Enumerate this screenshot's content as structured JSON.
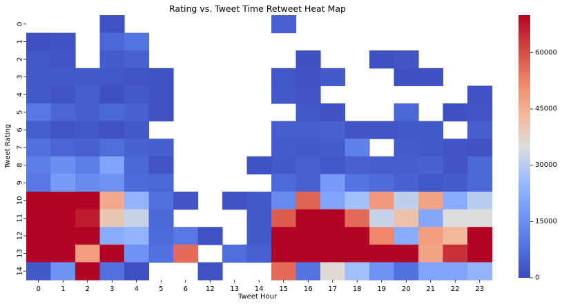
{
  "chart_data": {
    "type": "heatmap",
    "title": "Rating vs. Tweet Time Retweet Heat Map",
    "xlabel": "Tweet Hour",
    "ylabel": "Tweet Rating",
    "x_categories": [
      "0",
      "1",
      "2",
      "3",
      "4",
      "5",
      "6",
      "12",
      "13",
      "14",
      "15",
      "16",
      "17",
      "18",
      "19",
      "20",
      "21",
      "22",
      "23"
    ],
    "y_categories": [
      "0",
      "1",
      "2",
      "3",
      "4",
      "5",
      "6",
      "7",
      "8",
      "9",
      "10",
      "11",
      "12",
      "13",
      "14"
    ],
    "values": [
      [
        null,
        null,
        null,
        1500,
        null,
        null,
        null,
        null,
        null,
        null,
        4500,
        null,
        null,
        null,
        null,
        null,
        null,
        null,
        null
      ],
      [
        1000,
        1500,
        null,
        6000,
        9000,
        null,
        null,
        null,
        null,
        null,
        null,
        null,
        null,
        null,
        null,
        null,
        null,
        null,
        null
      ],
      [
        2500,
        2000,
        null,
        3500,
        4500,
        null,
        null,
        null,
        null,
        null,
        null,
        1000,
        null,
        null,
        1000,
        2000,
        null,
        null,
        null
      ],
      [
        2500,
        3000,
        3000,
        2500,
        2000,
        1500,
        null,
        null,
        null,
        null,
        2500,
        1500,
        3000,
        null,
        null,
        1000,
        1000,
        null,
        null
      ],
      [
        3000,
        2000,
        4000,
        1000,
        3000,
        1500,
        null,
        null,
        null,
        null,
        3000,
        2000,
        null,
        null,
        null,
        null,
        null,
        null,
        1500
      ],
      [
        10000,
        5500,
        4000,
        6000,
        5000,
        1500,
        null,
        null,
        null,
        null,
        null,
        2500,
        1500,
        null,
        null,
        6000,
        null,
        1000,
        2000
      ],
      [
        4000,
        2000,
        2500,
        1500,
        3000,
        null,
        null,
        null,
        null,
        null,
        4000,
        4000,
        4500,
        2000,
        2000,
        2500,
        2500,
        null,
        4000
      ],
      [
        8000,
        5500,
        4500,
        7500,
        5000,
        4000,
        null,
        null,
        null,
        null,
        3500,
        3000,
        3500,
        12000,
        null,
        3500,
        3000,
        2000,
        1500
      ],
      [
        11000,
        15000,
        11000,
        20000,
        6000,
        2000,
        null,
        null,
        null,
        1500,
        3000,
        4500,
        2500,
        4500,
        4000,
        4000,
        5000,
        2000,
        6000
      ],
      [
        10000,
        18000,
        14000,
        16000,
        7000,
        6000,
        null,
        null,
        null,
        null,
        7000,
        4500,
        18000,
        9000,
        7000,
        5000,
        2500,
        3500,
        6000
      ],
      [
        70000,
        70000,
        70000,
        46000,
        24000,
        8000,
        2000,
        null,
        1500,
        3000,
        14000,
        57000,
        20000,
        27000,
        49000,
        31000,
        47000,
        22000,
        30000
      ],
      [
        70000,
        70000,
        67000,
        40000,
        32000,
        6000,
        null,
        null,
        null,
        3000,
        58000,
        70000,
        70000,
        56000,
        32000,
        41000,
        21000,
        35000,
        35000
      ],
      [
        70000,
        70000,
        70000,
        22000,
        24000,
        7000,
        10000,
        1500,
        null,
        3000,
        70000,
        70000,
        70000,
        70000,
        52000,
        22000,
        48000,
        43000,
        70000
      ],
      [
        70000,
        70000,
        48000,
        70000,
        16000,
        8000,
        56000,
        null,
        7500,
        4500,
        70000,
        70000,
        70000,
        70000,
        70000,
        70000,
        47000,
        64000,
        70000
      ],
      [
        3000,
        16000,
        70000,
        8000,
        1000,
        null,
        null,
        1500,
        null,
        null,
        56000,
        9000,
        36000,
        27000,
        16000,
        8000,
        20000,
        20000,
        24000
      ]
    ],
    "colorbar": {
      "min": 0,
      "max": 70000,
      "ticks": [
        0,
        15000,
        30000,
        45000,
        60000
      ],
      "colormap": "coolwarm"
    }
  },
  "colors": {
    "low": "#3b4cc0",
    "mid": "#dddddd",
    "high": "#b40426"
  }
}
